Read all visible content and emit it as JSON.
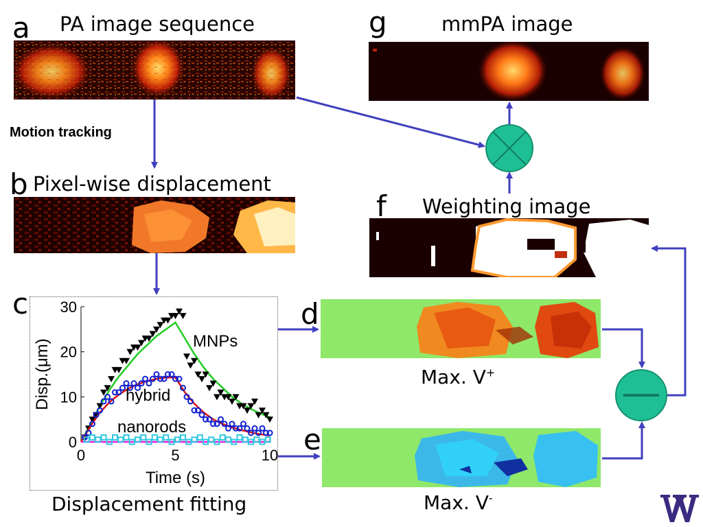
{
  "panels": {
    "a": {
      "letter": "a",
      "title": "PA image sequence"
    },
    "b": {
      "letter": "b",
      "title": "Pixel-wise displacement"
    },
    "c": {
      "letter": "c",
      "caption": "Displacement fitting"
    },
    "d": {
      "letter": "d",
      "caption_main": "Max. V",
      "caption_sup": "+"
    },
    "e": {
      "letter": "e",
      "caption_main": "Max. V",
      "caption_sup": "-"
    },
    "f": {
      "letter": "f",
      "title": "Weighting image"
    },
    "g": {
      "letter": "g",
      "title": "mmPA image"
    }
  },
  "labels": {
    "motion_tracking": "Motion tracking"
  },
  "operators": {
    "multiply": {
      "icon": "multiply-circle-icon",
      "color": "#1fbf95"
    },
    "subtract": {
      "icon": "minus-circle-icon",
      "color": "#1fbf95"
    }
  },
  "colors": {
    "arrow": "#3f3fbf",
    "hot_dark": "#3a0500",
    "hot_mid": "#d0300a",
    "hot_bright": "#ffd050",
    "jet_green": "#8fe86a",
    "jet_red": "#e04010",
    "jet_cyan": "#30c8f0",
    "jet_blue": "#1030a0"
  },
  "logo": {
    "text": "W",
    "color": "#3b2a80"
  },
  "chart_data": {
    "type": "scatter",
    "xlabel": "Time (s)",
    "ylabel": "Disp.(μm)",
    "xlim": [
      0,
      10
    ],
    "ylim": [
      0,
      30
    ],
    "xticks": [
      0,
      5,
      10
    ],
    "yticks": [
      0,
      10,
      20,
      30
    ],
    "series": [
      {
        "name": "MNPs",
        "marker": "triangle-down",
        "color": "#000000",
        "fit_color": "#22cc22",
        "points": [
          [
            0.2,
            1
          ],
          [
            0.4,
            3
          ],
          [
            0.6,
            5
          ],
          [
            0.8,
            6
          ],
          [
            1.0,
            8
          ],
          [
            1.2,
            11
          ],
          [
            1.4,
            12
          ],
          [
            1.6,
            14
          ],
          [
            1.8,
            16
          ],
          [
            2.0,
            16
          ],
          [
            2.2,
            18
          ],
          [
            2.4,
            18
          ],
          [
            2.6,
            20
          ],
          [
            2.8,
            21
          ],
          [
            3.0,
            21
          ],
          [
            3.2,
            22
          ],
          [
            3.4,
            23
          ],
          [
            3.6,
            23
          ],
          [
            3.8,
            24
          ],
          [
            4.0,
            25
          ],
          [
            4.2,
            26
          ],
          [
            4.4,
            27
          ],
          [
            4.6,
            27
          ],
          [
            4.8,
            28
          ],
          [
            5.0,
            28
          ],
          [
            5.2,
            29
          ],
          [
            5.4,
            28
          ],
          [
            5.6,
            19
          ],
          [
            5.8,
            17
          ],
          [
            6.0,
            18
          ],
          [
            6.2,
            15
          ],
          [
            6.4,
            14
          ],
          [
            6.6,
            15
          ],
          [
            6.8,
            12
          ],
          [
            7.0,
            13
          ],
          [
            7.2,
            10
          ],
          [
            7.4,
            11
          ],
          [
            7.6,
            10
          ],
          [
            7.8,
            10
          ],
          [
            8.0,
            9
          ],
          [
            8.2,
            10
          ],
          [
            8.4,
            8
          ],
          [
            8.6,
            8
          ],
          [
            8.8,
            7
          ],
          [
            9.0,
            8
          ],
          [
            9.2,
            9
          ],
          [
            9.4,
            6
          ],
          [
            9.6,
            7
          ],
          [
            9.8,
            6
          ],
          [
            10.0,
            5
          ]
        ],
        "fit": [
          [
            0,
            0
          ],
          [
            0.5,
            4
          ],
          [
            1,
            8
          ],
          [
            1.5,
            11.5
          ],
          [
            2,
            14.5
          ],
          [
            2.5,
            17
          ],
          [
            3,
            19.5
          ],
          [
            3.5,
            21.5
          ],
          [
            4,
            23.5
          ],
          [
            4.5,
            25
          ],
          [
            5,
            26.5
          ],
          [
            5.5,
            23
          ],
          [
            6,
            19.5
          ],
          [
            6.5,
            16.5
          ],
          [
            7,
            14
          ],
          [
            7.5,
            12
          ],
          [
            8,
            10
          ],
          [
            8.5,
            8.5
          ],
          [
            9,
            7.3
          ],
          [
            9.5,
            6.3
          ],
          [
            10,
            5.5
          ]
        ],
        "label": "MNPs"
      },
      {
        "name": "hybrid",
        "marker": "circle",
        "color": "#1020d0",
        "fit_color": "#dd1111",
        "points": [
          [
            0.2,
            1
          ],
          [
            0.4,
            2
          ],
          [
            0.6,
            4
          ],
          [
            0.8,
            6
          ],
          [
            1.0,
            7
          ],
          [
            1.2,
            9
          ],
          [
            1.4,
            10
          ],
          [
            1.6,
            9
          ],
          [
            1.8,
            11
          ],
          [
            2.0,
            11
          ],
          [
            2.2,
            12
          ],
          [
            2.4,
            13
          ],
          [
            2.6,
            12
          ],
          [
            2.8,
            13
          ],
          [
            3.0,
            12
          ],
          [
            3.2,
            13
          ],
          [
            3.4,
            14
          ],
          [
            3.6,
            13
          ],
          [
            3.8,
            14
          ],
          [
            4.0,
            15
          ],
          [
            4.2,
            14
          ],
          [
            4.4,
            14
          ],
          [
            4.6,
            15
          ],
          [
            4.8,
            15
          ],
          [
            5.0,
            14
          ],
          [
            5.2,
            14
          ],
          [
            5.4,
            12
          ],
          [
            5.6,
            10
          ],
          [
            5.8,
            9
          ],
          [
            6.0,
            7
          ],
          [
            6.2,
            7
          ],
          [
            6.4,
            6
          ],
          [
            6.6,
            5
          ],
          [
            6.8,
            5
          ],
          [
            7.0,
            4
          ],
          [
            7.2,
            4
          ],
          [
            7.4,
            5
          ],
          [
            7.6,
            4
          ],
          [
            7.8,
            3
          ],
          [
            8.0,
            4
          ],
          [
            8.2,
            3
          ],
          [
            8.4,
            3
          ],
          [
            8.6,
            4
          ],
          [
            8.8,
            3
          ],
          [
            9.0,
            2
          ],
          [
            9.2,
            3
          ],
          [
            9.4,
            2
          ],
          [
            9.6,
            3
          ],
          [
            9.8,
            2
          ],
          [
            10.0,
            2
          ]
        ],
        "fit": [
          [
            0,
            0
          ],
          [
            0.5,
            3.5
          ],
          [
            1,
            6.5
          ],
          [
            1.5,
            8.8
          ],
          [
            2,
            10.5
          ],
          [
            2.5,
            11.8
          ],
          [
            3,
            12.8
          ],
          [
            3.5,
            13.5
          ],
          [
            4,
            14
          ],
          [
            4.5,
            14.3
          ],
          [
            5,
            14.3
          ],
          [
            5.5,
            11
          ],
          [
            6,
            8.5
          ],
          [
            6.5,
            6.5
          ],
          [
            7,
            5
          ],
          [
            7.5,
            4
          ],
          [
            8,
            3.2
          ],
          [
            8.5,
            2.6
          ],
          [
            9,
            2.1
          ],
          [
            9.5,
            1.7
          ],
          [
            10,
            1.4
          ]
        ],
        "label": "hybrid"
      },
      {
        "name": "nanorods",
        "marker": "square",
        "color": "#30c8e0",
        "fit_color": "#dd22dd",
        "points": [
          [
            0.3,
            0.5
          ],
          [
            0.6,
            1
          ],
          [
            0.9,
            0.5
          ],
          [
            1.2,
            1
          ],
          [
            1.5,
            0
          ],
          [
            1.8,
            1
          ],
          [
            2.1,
            0.5
          ],
          [
            2.4,
            1
          ],
          [
            2.7,
            0
          ],
          [
            3.0,
            0.5
          ],
          [
            3.3,
            1
          ],
          [
            3.6,
            0
          ],
          [
            3.9,
            1
          ],
          [
            4.2,
            0.5
          ],
          [
            4.5,
            1
          ],
          [
            4.8,
            0
          ],
          [
            5.1,
            0.5
          ],
          [
            5.4,
            1
          ],
          [
            5.7,
            0
          ],
          [
            6.0,
            0.5
          ],
          [
            6.3,
            1
          ],
          [
            6.6,
            0
          ],
          [
            6.9,
            0.5
          ],
          [
            7.2,
            0
          ],
          [
            7.5,
            1
          ],
          [
            7.8,
            0.5
          ],
          [
            8.1,
            0
          ],
          [
            8.4,
            1
          ],
          [
            8.7,
            0.5
          ],
          [
            9.0,
            0
          ],
          [
            9.3,
            0.5
          ],
          [
            9.6,
            0
          ],
          [
            9.9,
            0.5
          ]
        ],
        "fit": [
          [
            0,
            0
          ],
          [
            10,
            0
          ]
        ],
        "label": "nanorods"
      }
    ]
  }
}
